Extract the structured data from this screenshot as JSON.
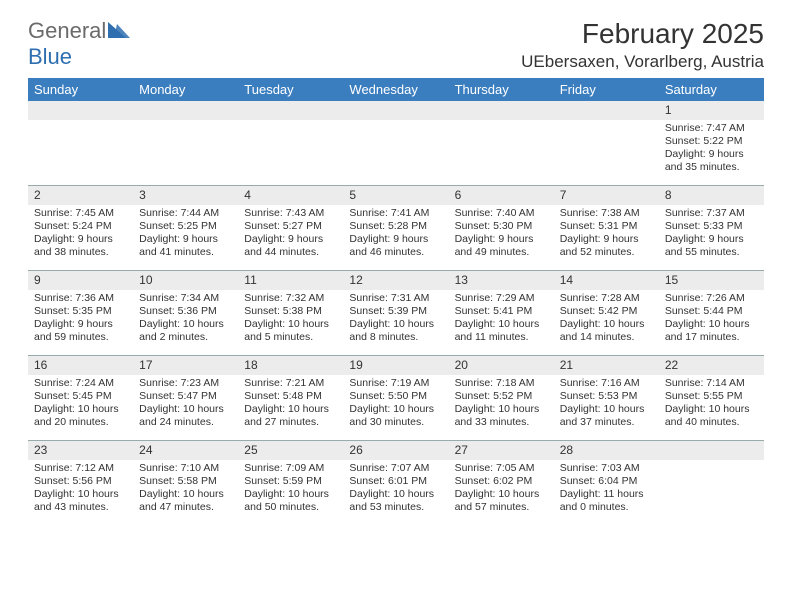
{
  "header": {
    "logo_general": "General",
    "logo_blue": "Blue",
    "title": "February 2025",
    "location": "UEbersaxen, Vorarlberg, Austria"
  },
  "colors": {
    "header_bg": "#3a7ebf",
    "header_text": "#ffffff",
    "daynum_bg": "#ececec",
    "border": "#95a0a8",
    "text": "#333333"
  },
  "day_names": [
    "Sunday",
    "Monday",
    "Tuesday",
    "Wednesday",
    "Thursday",
    "Friday",
    "Saturday"
  ],
  "weeks": [
    [
      {
        "n": "",
        "lines": []
      },
      {
        "n": "",
        "lines": []
      },
      {
        "n": "",
        "lines": []
      },
      {
        "n": "",
        "lines": []
      },
      {
        "n": "",
        "lines": []
      },
      {
        "n": "",
        "lines": []
      },
      {
        "n": "1",
        "lines": [
          "Sunrise: 7:47 AM",
          "Sunset: 5:22 PM",
          "Daylight: 9 hours and 35 minutes."
        ]
      }
    ],
    [
      {
        "n": "2",
        "lines": [
          "Sunrise: 7:45 AM",
          "Sunset: 5:24 PM",
          "Daylight: 9 hours and 38 minutes."
        ]
      },
      {
        "n": "3",
        "lines": [
          "Sunrise: 7:44 AM",
          "Sunset: 5:25 PM",
          "Daylight: 9 hours and 41 minutes."
        ]
      },
      {
        "n": "4",
        "lines": [
          "Sunrise: 7:43 AM",
          "Sunset: 5:27 PM",
          "Daylight: 9 hours and 44 minutes."
        ]
      },
      {
        "n": "5",
        "lines": [
          "Sunrise: 7:41 AM",
          "Sunset: 5:28 PM",
          "Daylight: 9 hours and 46 minutes."
        ]
      },
      {
        "n": "6",
        "lines": [
          "Sunrise: 7:40 AM",
          "Sunset: 5:30 PM",
          "Daylight: 9 hours and 49 minutes."
        ]
      },
      {
        "n": "7",
        "lines": [
          "Sunrise: 7:38 AM",
          "Sunset: 5:31 PM",
          "Daylight: 9 hours and 52 minutes."
        ]
      },
      {
        "n": "8",
        "lines": [
          "Sunrise: 7:37 AM",
          "Sunset: 5:33 PM",
          "Daylight: 9 hours and 55 minutes."
        ]
      }
    ],
    [
      {
        "n": "9",
        "lines": [
          "Sunrise: 7:36 AM",
          "Sunset: 5:35 PM",
          "Daylight: 9 hours and 59 minutes."
        ]
      },
      {
        "n": "10",
        "lines": [
          "Sunrise: 7:34 AM",
          "Sunset: 5:36 PM",
          "Daylight: 10 hours and 2 minutes."
        ]
      },
      {
        "n": "11",
        "lines": [
          "Sunrise: 7:32 AM",
          "Sunset: 5:38 PM",
          "Daylight: 10 hours and 5 minutes."
        ]
      },
      {
        "n": "12",
        "lines": [
          "Sunrise: 7:31 AM",
          "Sunset: 5:39 PM",
          "Daylight: 10 hours and 8 minutes."
        ]
      },
      {
        "n": "13",
        "lines": [
          "Sunrise: 7:29 AM",
          "Sunset: 5:41 PM",
          "Daylight: 10 hours and 11 minutes."
        ]
      },
      {
        "n": "14",
        "lines": [
          "Sunrise: 7:28 AM",
          "Sunset: 5:42 PM",
          "Daylight: 10 hours and 14 minutes."
        ]
      },
      {
        "n": "15",
        "lines": [
          "Sunrise: 7:26 AM",
          "Sunset: 5:44 PM",
          "Daylight: 10 hours and 17 minutes."
        ]
      }
    ],
    [
      {
        "n": "16",
        "lines": [
          "Sunrise: 7:24 AM",
          "Sunset: 5:45 PM",
          "Daylight: 10 hours and 20 minutes."
        ]
      },
      {
        "n": "17",
        "lines": [
          "Sunrise: 7:23 AM",
          "Sunset: 5:47 PM",
          "Daylight: 10 hours and 24 minutes."
        ]
      },
      {
        "n": "18",
        "lines": [
          "Sunrise: 7:21 AM",
          "Sunset: 5:48 PM",
          "Daylight: 10 hours and 27 minutes."
        ]
      },
      {
        "n": "19",
        "lines": [
          "Sunrise: 7:19 AM",
          "Sunset: 5:50 PM",
          "Daylight: 10 hours and 30 minutes."
        ]
      },
      {
        "n": "20",
        "lines": [
          "Sunrise: 7:18 AM",
          "Sunset: 5:52 PM",
          "Daylight: 10 hours and 33 minutes."
        ]
      },
      {
        "n": "21",
        "lines": [
          "Sunrise: 7:16 AM",
          "Sunset: 5:53 PM",
          "Daylight: 10 hours and 37 minutes."
        ]
      },
      {
        "n": "22",
        "lines": [
          "Sunrise: 7:14 AM",
          "Sunset: 5:55 PM",
          "Daylight: 10 hours and 40 minutes."
        ]
      }
    ],
    [
      {
        "n": "23",
        "lines": [
          "Sunrise: 7:12 AM",
          "Sunset: 5:56 PM",
          "Daylight: 10 hours and 43 minutes."
        ]
      },
      {
        "n": "24",
        "lines": [
          "Sunrise: 7:10 AM",
          "Sunset: 5:58 PM",
          "Daylight: 10 hours and 47 minutes."
        ]
      },
      {
        "n": "25",
        "lines": [
          "Sunrise: 7:09 AM",
          "Sunset: 5:59 PM",
          "Daylight: 10 hours and 50 minutes."
        ]
      },
      {
        "n": "26",
        "lines": [
          "Sunrise: 7:07 AM",
          "Sunset: 6:01 PM",
          "Daylight: 10 hours and 53 minutes."
        ]
      },
      {
        "n": "27",
        "lines": [
          "Sunrise: 7:05 AM",
          "Sunset: 6:02 PM",
          "Daylight: 10 hours and 57 minutes."
        ]
      },
      {
        "n": "28",
        "lines": [
          "Sunrise: 7:03 AM",
          "Sunset: 6:04 PM",
          "Daylight: 11 hours and 0 minutes."
        ]
      },
      {
        "n": "",
        "lines": []
      }
    ]
  ]
}
